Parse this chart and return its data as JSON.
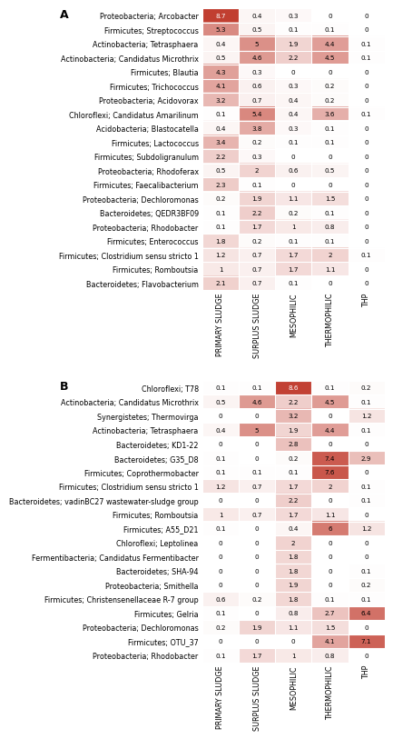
{
  "panel_A": {
    "rows": [
      "Proteobacteria; Arcobacter",
      "Firmicutes; Streptococcus",
      "Actinobacteria; Tetrasphaera",
      "Actinobacteria; Candidatus Microthrix",
      "Firmicutes; Blautia",
      "Firmicutes; Trichococcus",
      "Proteobacteria; Acidovorax",
      "Chloroflexi; Candidatus Amarilinum",
      "Acidobacteria; Blastocatella",
      "Firmicutes; Lactococcus",
      "Firmicutes; Subdoligranulum",
      "Proteobacteria; Rhodoferax",
      "Firmicutes; Faecalibacterium",
      "Proteobacteria; Dechloromonas",
      "Bacteroidetes; QEDR3BF09",
      "Proteobacteria; Rhodobacter",
      "Firmicutes; Enterococcus",
      "Firmicutes; Clostridium sensu stricto 1",
      "Firmicutes; Romboutsia",
      "Bacteroidetes; Flavobacterium"
    ],
    "values": [
      [
        8.7,
        0.4,
        0.3,
        0,
        0
      ],
      [
        5.3,
        0.5,
        0.1,
        0.1,
        0
      ],
      [
        0.4,
        5,
        1.9,
        4.4,
        0.1
      ],
      [
        0.5,
        4.6,
        2.2,
        4.5,
        0.1
      ],
      [
        4.3,
        0.3,
        0,
        0,
        0
      ],
      [
        4.1,
        0.6,
        0.3,
        0.2,
        0
      ],
      [
        3.2,
        0.7,
        0.4,
        0.2,
        0
      ],
      [
        0.1,
        5.4,
        0.4,
        3.6,
        0.1
      ],
      [
        0.4,
        3.8,
        0.3,
        0.1,
        0
      ],
      [
        3.4,
        0.2,
        0.1,
        0.1,
        0
      ],
      [
        2.2,
        0.3,
        0,
        0,
        0
      ],
      [
        0.5,
        2,
        0.6,
        0.5,
        0
      ],
      [
        2.3,
        0.1,
        0,
        0,
        0
      ],
      [
        0.2,
        1.9,
        1.1,
        1.5,
        0
      ],
      [
        0.1,
        2.2,
        0.2,
        0.1,
        0
      ],
      [
        0.1,
        1.7,
        1,
        0.8,
        0
      ],
      [
        1.8,
        0.2,
        0.1,
        0.1,
        0
      ],
      [
        1.2,
        0.7,
        1.7,
        2,
        0.1
      ],
      [
        1,
        0.7,
        1.7,
        1.1,
        0
      ],
      [
        2.1,
        0.7,
        0.1,
        0,
        0
      ]
    ]
  },
  "panel_B": {
    "rows": [
      "Chloroflexi; T78",
      "Actinobacteria; Candidatus Microthrix",
      "Synergistetes; Thermovirga",
      "Actinobacteria; Tetrasphaera",
      "Bacteroidetes; KD1-22",
      "Bacteroidetes; G35_D8",
      "Firmicutes; Coprothermobacter",
      "Firmicutes; Clostridium sensu stricto 1",
      "Bacteroidetes; vadinBC27 wastewater-sludge group",
      "Firmicutes; Romboutsia",
      "Firmicutes; A55_D21",
      "Chloroflexi; Leptolinea",
      "Fermentibacteria; Candidatus Fermentibacter",
      "Bacteroidetes; SHA-94",
      "Proteobacteria; Smithella",
      "Firmicutes; Christensenellaceae R-7 group",
      "Firmicutes; Gelria",
      "Proteobacteria; Dechloromonas",
      "Firmicutes; OTU_37",
      "Proteobacteria; Rhodobacter"
    ],
    "values": [
      [
        0.1,
        0.1,
        8.6,
        0.1,
        0.2
      ],
      [
        0.5,
        4.6,
        2.2,
        4.5,
        0.1
      ],
      [
        0,
        0,
        3.2,
        0,
        1.2
      ],
      [
        0.4,
        5,
        1.9,
        4.4,
        0.1
      ],
      [
        0,
        0,
        2.8,
        0,
        0
      ],
      [
        0.1,
        0,
        0.2,
        7.4,
        2.9
      ],
      [
        0.1,
        0.1,
        0.1,
        7.6,
        0
      ],
      [
        1.2,
        0.7,
        1.7,
        2,
        0.1
      ],
      [
        0,
        0,
        2.2,
        0,
        0.1
      ],
      [
        1,
        0.7,
        1.7,
        1.1,
        0
      ],
      [
        0.1,
        0,
        0.4,
        6,
        1.2
      ],
      [
        0,
        0,
        2,
        0,
        0
      ],
      [
        0,
        0,
        1.8,
        0,
        0
      ],
      [
        0,
        0,
        1.8,
        0,
        0.1
      ],
      [
        0,
        0,
        1.9,
        0,
        0.2
      ],
      [
        0.6,
        0.2,
        1.8,
        0.1,
        0.1
      ],
      [
        0.1,
        0,
        0.8,
        2.7,
        6.4
      ],
      [
        0.2,
        1.9,
        1.1,
        1.5,
        0
      ],
      [
        0,
        0,
        0,
        4.1,
        7.1
      ],
      [
        0.1,
        1.7,
        1,
        0.8,
        0
      ]
    ]
  },
  "columns": [
    "PRIMARY SLUDGE",
    "SURPLUS SLUDGE",
    "MESOPHILIC",
    "THERMOPHILIC",
    "THP"
  ],
  "vmax": 9.0,
  "cmap_min_color": "#ffffff",
  "cmap_max_color": "#c0392b",
  "row_label_fontsize": 5.8,
  "col_fontsize": 5.8,
  "val_fontsize": 5.2,
  "panel_label_fontsize": 9
}
